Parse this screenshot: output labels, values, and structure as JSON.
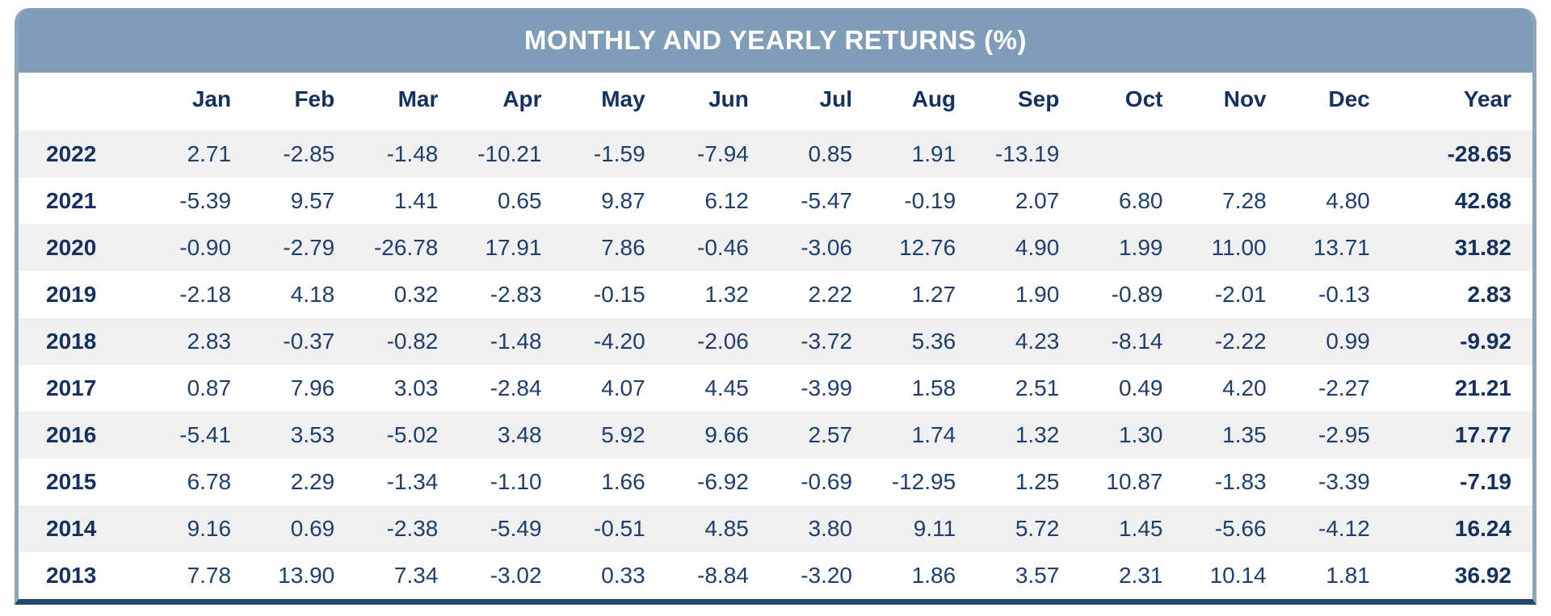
{
  "title_bar": {
    "label": "MONTHLY AND YEARLY RETURNS (%)"
  },
  "colors": {
    "header_bg": "#7f9db9",
    "header_text": "#ffffff",
    "text_navy": "#1e3f6e",
    "bold_navy": "#14315f",
    "stripe": "#f0f0f1",
    "side_border": "#8ca6be",
    "bottom_border": "#27466e"
  },
  "chart_data": {
    "type": "table",
    "title": "MONTHLY AND YEARLY RETURNS (%)",
    "columns": [
      "",
      "Jan",
      "Feb",
      "Mar",
      "Apr",
      "May",
      "Jun",
      "Jul",
      "Aug",
      "Sep",
      "Oct",
      "Nov",
      "Dec",
      "Year"
    ],
    "rows": [
      [
        "2022",
        "2.71",
        "-2.85",
        "-1.48",
        "-10.21",
        "-1.59",
        "-7.94",
        "0.85",
        "1.91",
        "-13.19",
        "",
        "",
        "",
        "-28.65"
      ],
      [
        "2021",
        "-5.39",
        "9.57",
        "1.41",
        "0.65",
        "9.87",
        "6.12",
        "-5.47",
        "-0.19",
        "2.07",
        "6.80",
        "7.28",
        "4.80",
        "42.68"
      ],
      [
        "2020",
        "-0.90",
        "-2.79",
        "-26.78",
        "17.91",
        "7.86",
        "-0.46",
        "-3.06",
        "12.76",
        "4.90",
        "1.99",
        "11.00",
        "13.71",
        "31.82"
      ],
      [
        "2019",
        "-2.18",
        "4.18",
        "0.32",
        "-2.83",
        "-0.15",
        "1.32",
        "2.22",
        "1.27",
        "1.90",
        "-0.89",
        "-2.01",
        "-0.13",
        "2.83"
      ],
      [
        "2018",
        "2.83",
        "-0.37",
        "-0.82",
        "-1.48",
        "-4.20",
        "-2.06",
        "-3.72",
        "5.36",
        "4.23",
        "-8.14",
        "-2.22",
        "0.99",
        "-9.92"
      ],
      [
        "2017",
        "0.87",
        "7.96",
        "3.03",
        "-2.84",
        "4.07",
        "4.45",
        "-3.99",
        "1.58",
        "2.51",
        "0.49",
        "4.20",
        "-2.27",
        "21.21"
      ],
      [
        "2016",
        "-5.41",
        "3.53",
        "-5.02",
        "3.48",
        "5.92",
        "9.66",
        "2.57",
        "1.74",
        "1.32",
        "1.30",
        "1.35",
        "-2.95",
        "17.77"
      ],
      [
        "2015",
        "6.78",
        "2.29",
        "-1.34",
        "-1.10",
        "1.66",
        "-6.92",
        "-0.69",
        "-12.95",
        "1.25",
        "10.87",
        "-1.83",
        "-3.39",
        "-7.19"
      ],
      [
        "2014",
        "9.16",
        "0.69",
        "-2.38",
        "-5.49",
        "-0.51",
        "4.85",
        "3.80",
        "9.11",
        "5.72",
        "1.45",
        "-5.66",
        "-4.12",
        "16.24"
      ],
      [
        "2013",
        "7.78",
        "13.90",
        "7.34",
        "-3.02",
        "0.33",
        "-8.84",
        "-3.20",
        "1.86",
        "3.57",
        "2.31",
        "10.14",
        "1.81",
        "36.92"
      ]
    ]
  }
}
